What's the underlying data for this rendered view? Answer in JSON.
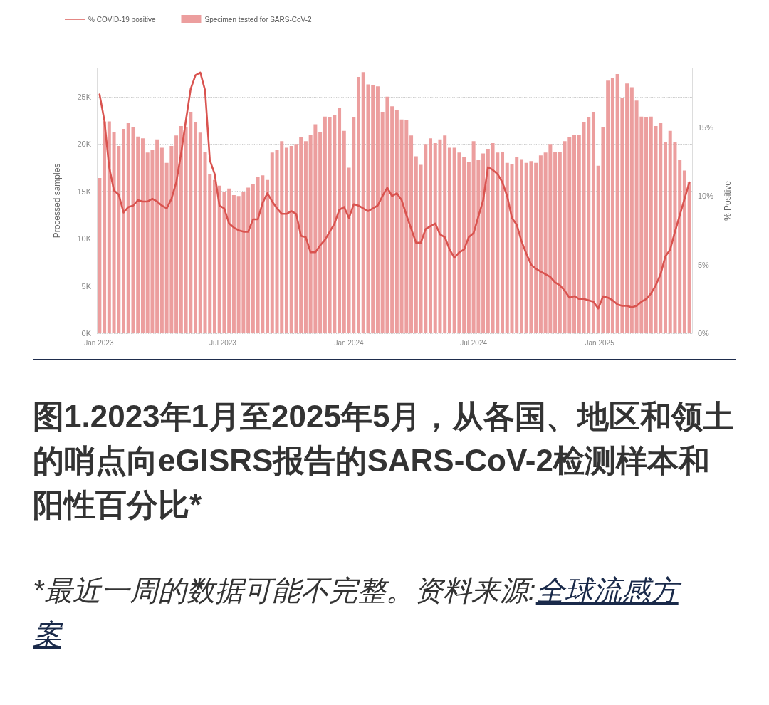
{
  "chart_data": {
    "type": "bar",
    "title": "图1.2023年1月至2025年5月，从各国、地区和领土的哨点向eGISRS报告的SARS-CoV-2检测样本和阳性百分比*",
    "ylabel": "Processed samples",
    "y2label": "% Positive",
    "annotations": [
      "*最近一周的数据可能不完整。资料来源:全球流感方案"
    ],
    "x": [
      "2023-01-02",
      "2023-01-09",
      "2023-01-16",
      "2023-01-23",
      "2023-01-30",
      "2023-02-06",
      "2023-02-13",
      "2023-02-20",
      "2023-02-27",
      "2023-03-06",
      "2023-03-13",
      "2023-03-20",
      "2023-03-27",
      "2023-04-03",
      "2023-04-10",
      "2023-04-17",
      "2023-04-24",
      "2023-05-01",
      "2023-05-08",
      "2023-05-15",
      "2023-05-22",
      "2023-05-29",
      "2023-06-05",
      "2023-06-12",
      "2023-06-19",
      "2023-06-26",
      "2023-07-03",
      "2023-07-10",
      "2023-07-17",
      "2023-07-24",
      "2023-07-31",
      "2023-08-07",
      "2023-08-14",
      "2023-08-21",
      "2023-08-28",
      "2023-09-04",
      "2023-09-11",
      "2023-09-18",
      "2023-09-25",
      "2023-10-02",
      "2023-10-09",
      "2023-10-16",
      "2023-10-23",
      "2023-10-30",
      "2023-11-06",
      "2023-11-13",
      "2023-11-20",
      "2023-11-27",
      "2023-12-04",
      "2023-12-11",
      "2023-12-18",
      "2023-12-25",
      "2024-01-01",
      "2024-01-08",
      "2024-01-15",
      "2024-01-22",
      "2024-01-29",
      "2024-02-05",
      "2024-02-12",
      "2024-02-19",
      "2024-02-26",
      "2024-03-04",
      "2024-03-11",
      "2024-03-18",
      "2024-03-25",
      "2024-04-01",
      "2024-04-08",
      "2024-04-15",
      "2024-04-22",
      "2024-04-29",
      "2024-05-06",
      "2024-05-13",
      "2024-05-20",
      "2024-05-27",
      "2024-06-03",
      "2024-06-10",
      "2024-06-17",
      "2024-06-24",
      "2024-07-01",
      "2024-07-08",
      "2024-07-15",
      "2024-07-22",
      "2024-07-29",
      "2024-08-05",
      "2024-08-12",
      "2024-08-19",
      "2024-08-26",
      "2024-09-02",
      "2024-09-09",
      "2024-09-16",
      "2024-09-23",
      "2024-09-30",
      "2024-10-07",
      "2024-10-14",
      "2024-10-21",
      "2024-10-28",
      "2024-11-04",
      "2024-11-11",
      "2024-11-18",
      "2024-11-25",
      "2024-12-02",
      "2024-12-09",
      "2024-12-16",
      "2024-12-23",
      "2024-12-30",
      "2025-01-06",
      "2025-01-13",
      "2025-01-20",
      "2025-01-27",
      "2025-02-03",
      "2025-02-10",
      "2025-02-17",
      "2025-02-24",
      "2025-03-03",
      "2025-03-10",
      "2025-03-17",
      "2025-03-24",
      "2025-03-31",
      "2025-04-07",
      "2025-04-14",
      "2025-04-21",
      "2025-04-28",
      "2025-05-05",
      "2025-05-12"
    ],
    "series": [
      {
        "name": "% COVID-19 positive",
        "type": "line",
        "axis": "y2",
        "color": "#d9534f",
        "values": [
          17.4,
          15.5,
          12.1,
          10.4,
          10.1,
          8.8,
          9.2,
          9.3,
          9.7,
          9.6,
          9.6,
          9.8,
          9.6,
          9.3,
          9.1,
          9.8,
          11.0,
          13.1,
          15.5,
          17.8,
          18.8,
          19.0,
          17.7,
          12.6,
          11.6,
          9.3,
          9.1,
          8.0,
          7.7,
          7.5,
          7.4,
          7.4,
          8.3,
          8.3,
          9.5,
          10.2,
          9.6,
          9.1,
          8.7,
          8.7,
          8.9,
          8.7,
          7.1,
          7.0,
          5.9,
          5.9,
          6.4,
          6.8,
          7.4,
          8.0,
          9.0,
          9.2,
          8.4,
          9.4,
          9.3,
          9.1,
          8.9,
          9.1,
          9.3,
          10.0,
          10.6,
          10.0,
          10.2,
          9.7,
          8.6,
          7.6,
          6.6,
          6.6,
          7.6,
          7.8,
          8.0,
          7.2,
          7.0,
          6.1,
          5.5,
          5.9,
          6.1,
          7.0,
          7.3,
          8.5,
          9.7,
          12.1,
          11.9,
          11.6,
          11.0,
          10.0,
          8.4,
          7.9,
          6.7,
          5.8,
          5.0,
          4.7,
          4.5,
          4.3,
          4.1,
          3.7,
          3.5,
          3.1,
          2.6,
          2.7,
          2.5,
          2.5,
          2.4,
          2.3,
          1.8,
          2.7,
          2.6,
          2.4,
          2.1,
          2.0,
          2.0,
          1.9,
          2.0,
          2.3,
          2.5,
          2.9,
          3.5,
          4.3,
          5.6,
          6.1,
          7.4,
          8.6,
          9.8,
          11.0
        ]
      },
      {
        "name": "Specimen tested for SARS-CoV-2",
        "color": "#ec9e9e",
        "values": [
          16400,
          22400,
          22400,
          21300,
          19800,
          21600,
          22200,
          21800,
          20800,
          20600,
          19100,
          19400,
          20500,
          19600,
          18000,
          19800,
          20900,
          21900,
          21800,
          23400,
          22300,
          21200,
          19200,
          16800,
          16200,
          15600,
          14900,
          15300,
          14600,
          14500,
          14900,
          15400,
          15800,
          16500,
          16700,
          16200,
          19100,
          19400,
          20300,
          19600,
          19800,
          20000,
          20700,
          20300,
          21000,
          22100,
          21300,
          22900,
          22800,
          23100,
          23800,
          21400,
          17500,
          22800,
          27100,
          27600,
          26300,
          26200,
          26100,
          23400,
          25000,
          24000,
          23600,
          22600,
          22500,
          20900,
          18700,
          17800,
          20000,
          20600,
          20100,
          20500,
          20900,
          19600,
          19600,
          19100,
          18600,
          18100,
          20300,
          18300,
          19000,
          19500,
          20100,
          19100,
          19200,
          18000,
          17900,
          18600,
          18400,
          18000,
          18200,
          18000,
          18800,
          19100,
          20000,
          19200,
          19200,
          20300,
          20700,
          21000,
          21000,
          22300,
          22800,
          23400,
          17700,
          21800,
          26700,
          27000,
          27400,
          24900,
          26400,
          26000,
          24600,
          22900,
          22800,
          22900,
          21900,
          22200,
          20200,
          21400,
          20200,
          18300,
          17200,
          16000
        ]
      }
    ],
    "xlim": [
      "2022-12-29",
      "2025-05-16"
    ],
    "xticks": [
      {
        "value": "2023-01-01",
        "label": "Jan 2023"
      },
      {
        "value": "2023-07-01",
        "label": "Jul 2023"
      },
      {
        "value": "2024-01-01",
        "label": "Jan 2024"
      },
      {
        "value": "2024-07-01",
        "label": "Jul 2024"
      },
      {
        "value": "2025-01-01",
        "label": "Jan 2025"
      }
    ],
    "yticks": [
      {
        "value": 0,
        "label": "0K"
      },
      {
        "value": 5000,
        "label": "5K"
      },
      {
        "value": 10000,
        "label": "10K"
      },
      {
        "value": 15000,
        "label": "15K"
      },
      {
        "value": 20000,
        "label": "20K"
      },
      {
        "value": 25000,
        "label": "25K"
      }
    ],
    "ylim": [
      0,
      28000
    ],
    "y2lim": [
      0,
      19.3
    ],
    "y2ticks": [
      {
        "value": 0,
        "label": "0%"
      },
      {
        "value": 5,
        "label": "5%"
      },
      {
        "value": 10,
        "label": "10%"
      },
      {
        "value": 15,
        "label": "15%"
      }
    ],
    "grid": "y",
    "legend": "top left",
    "marker": "none",
    "line_style": "solid"
  }
}
